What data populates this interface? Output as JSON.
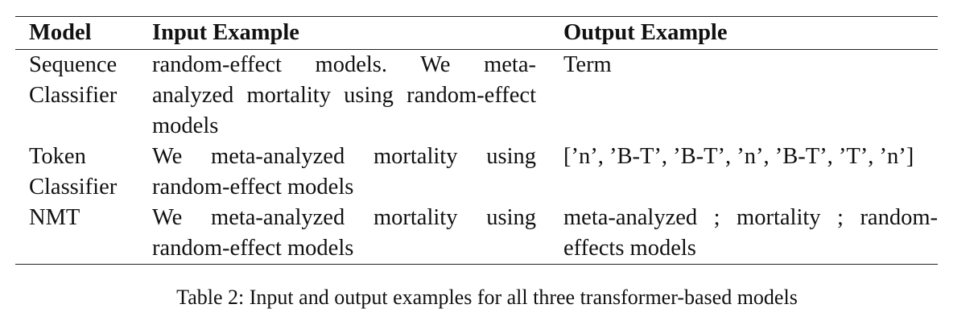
{
  "table": {
    "headers": {
      "model": "Model",
      "input": "Input Example",
      "output": "Output Example"
    },
    "rows": [
      {
        "model": [
          "Sequence",
          "Classifier"
        ],
        "input": {
          "justified_lines": [
            "random-effect models. We meta-",
            "analyzed mortality using random-effect"
          ],
          "last_line": "models"
        },
        "output": {
          "justified_lines": [],
          "last_line": "Term"
        }
      },
      {
        "model": [
          "Token",
          "Classifier"
        ],
        "input": {
          "justified_lines": [
            "We meta-analyzed mortality using"
          ],
          "last_line": "random-effect models"
        },
        "output": {
          "justified_lines": [],
          "last_line": "[’n’, ’B-T’, ’B-T’, ’n’, ’B-T’, ’T’, ’n’]"
        }
      },
      {
        "model": [
          "NMT"
        ],
        "input": {
          "justified_lines": [
            "We meta-analyzed mortality using"
          ],
          "last_line": "random-effect models"
        },
        "output": {
          "justified_lines": [
            "meta-analyzed ; mortality ; random-"
          ],
          "last_line": "effects models"
        }
      }
    ]
  },
  "caption": "Table 2: Input and output examples for all three transformer-based models"
}
